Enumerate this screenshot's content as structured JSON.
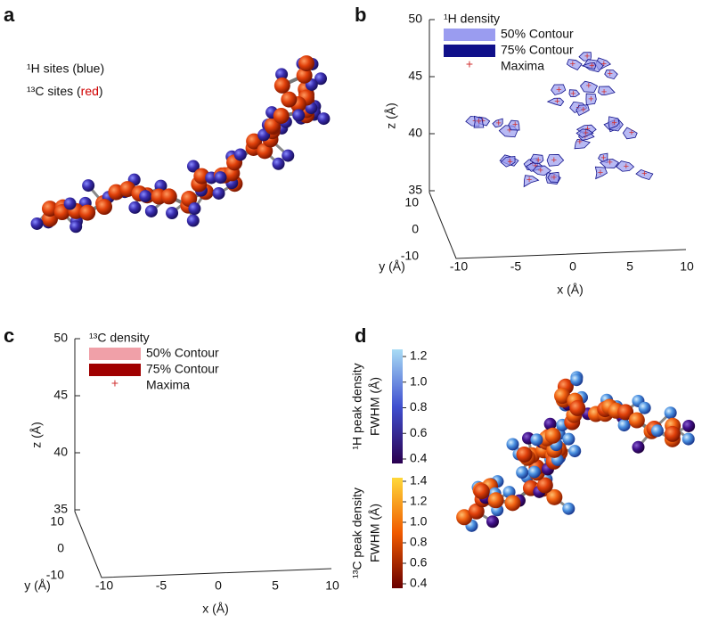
{
  "panels": {
    "a": {
      "label": "a",
      "legend": [
        "¹H sites (blue)"
      ],
      "legend_c": [
        "¹³C sites (",
        "red",
        ")"
      ]
    },
    "b": {
      "label": "b",
      "title": "¹H density",
      "legend": [
        "50% Contour",
        "75% Contour",
        "Maxima"
      ],
      "z_label": "z (Å)",
      "y_label": "y (Å)",
      "x_label": "x (Å)",
      "z_ticks": [
        50,
        45,
        40,
        35
      ],
      "y_ticks": [
        10,
        0,
        -10
      ],
      "x_ticks": [
        -10,
        -5,
        0,
        5,
        10
      ]
    },
    "c": {
      "label": "c",
      "title": "¹³C density",
      "legend": [
        "50% Contour",
        "75% Contour",
        "Maxima"
      ],
      "z_label": "z (Å)",
      "y_label": "y (Å)",
      "x_label": "x (Å)",
      "z_ticks": [
        50,
        45,
        40,
        35
      ],
      "y_ticks": [
        10,
        0,
        -10
      ],
      "x_ticks": [
        -10,
        -5,
        0,
        5,
        10
      ]
    },
    "d": {
      "label": "d",
      "h_bar_label": [
        "¹H peak density",
        "FWHM (Å)"
      ],
      "h_ticks": [
        "1.2",
        "1.0",
        "0.8",
        "0.6",
        "0.4"
      ],
      "c_bar_label": [
        "¹³C peak density",
        "FWHM (Å)"
      ],
      "c_ticks": [
        "1.4",
        "1.2",
        "1.0",
        "0.8",
        "0.6",
        "0.4"
      ]
    }
  }
}
